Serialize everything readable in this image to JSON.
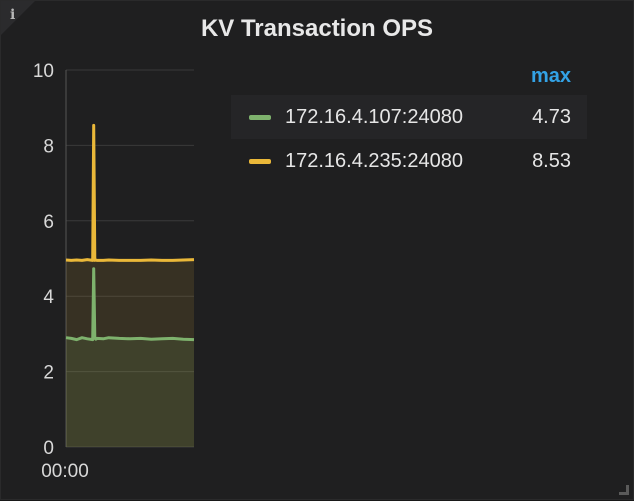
{
  "panel": {
    "title": "KV Transaction OPS",
    "info_icon": "info-icon"
  },
  "legend": {
    "header": "max",
    "items": [
      {
        "name": "172.16.4.107:24080",
        "max": "4.73",
        "color": "#7eb26d"
      },
      {
        "name": "172.16.4.235:24080",
        "max": "8.53",
        "color": "#eab839"
      }
    ]
  },
  "colors": {
    "accent": "#33a2e5",
    "background": "#1f1f20",
    "grid": "#3a3a3a"
  },
  "chart_data": {
    "type": "area",
    "title": "KV Transaction OPS",
    "xlabel": "",
    "ylabel": "",
    "ylim": [
      0,
      10
    ],
    "yticks": [
      0,
      2,
      4,
      6,
      8,
      10
    ],
    "xticks": [
      "00:00"
    ],
    "grid": true,
    "legend_position": "right",
    "x": [
      0,
      5,
      10,
      15,
      20,
      25,
      26,
      27,
      28,
      29,
      35,
      40,
      50,
      60,
      70,
      80,
      90,
      100,
      110,
      120
    ],
    "series": [
      {
        "name": "172.16.4.107:24080",
        "color": "#7eb26d",
        "values": [
          2.9,
          2.88,
          2.85,
          2.9,
          2.87,
          2.85,
          4.73,
          2.9,
          2.86,
          2.88,
          2.87,
          2.9,
          2.88,
          2.87,
          2.88,
          2.86,
          2.87,
          2.88,
          2.86,
          2.85
        ]
      },
      {
        "name": "172.16.4.235:24080",
        "color": "#eab839",
        "values": [
          4.96,
          4.95,
          4.96,
          4.95,
          4.97,
          4.95,
          8.53,
          4.95,
          4.96,
          4.95,
          4.95,
          4.96,
          4.95,
          4.95,
          4.95,
          4.96,
          4.95,
          4.95,
          4.96,
          4.97
        ]
      }
    ]
  }
}
